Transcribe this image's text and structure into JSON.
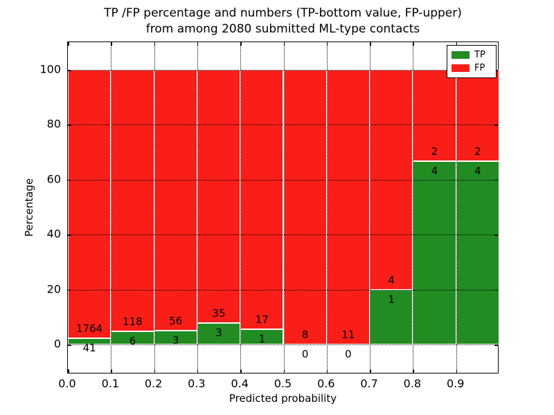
{
  "title": {
    "line1": "TP /FP percentage and numbers (TP-bottom value, FP-upper)",
    "line2": "from among 2080 submitted ML-type contacts"
  },
  "axes": {
    "xlabel": "Predicted probability",
    "ylabel": "Percentage",
    "x_tick_labels": [
      "0.0",
      "0.1",
      "0.2",
      "0.3",
      "0.4",
      "0.5",
      "0.6",
      "0.7",
      "0.8",
      "0.9"
    ],
    "y_tick_labels": [
      "0",
      "20",
      "40",
      "60",
      "80",
      "100"
    ]
  },
  "legend": {
    "items": [
      {
        "label": "TP",
        "color": "#228b22"
      },
      {
        "label": "FP",
        "color": "#fa1e19"
      }
    ]
  },
  "colors": {
    "tp": "#228b22",
    "fp": "#fa1e19",
    "bar_edge": "#ffffff",
    "grid": "#000000"
  },
  "chart_data": {
    "type": "bar",
    "stacked": true,
    "normalized": "each bin stacked to 100%",
    "title": "TP /FP percentage and numbers (TP-bottom value, FP-upper) from among 2080 submitted ML-type contacts",
    "xlabel": "Predicted probability",
    "ylabel": "Percentage",
    "bin_edges": [
      0.0,
      0.1,
      0.2,
      0.3,
      0.4,
      0.5,
      0.6,
      0.7,
      0.8,
      0.9,
      1.0
    ],
    "series": [
      {
        "name": "TP",
        "counts": [
          41,
          6,
          3,
          3,
          1,
          0,
          0,
          1,
          4,
          4
        ]
      },
      {
        "name": "FP",
        "counts": [
          1764,
          118,
          56,
          35,
          17,
          8,
          11,
          4,
          2,
          2
        ]
      }
    ],
    "total_contacts": 2080,
    "y_ticks": [
      0,
      20,
      40,
      60,
      80,
      100
    ],
    "ylim": [
      -11,
      110
    ],
    "xlim": [
      0.0,
      1.0
    ],
    "grid": true,
    "legend_position": "upper right"
  }
}
